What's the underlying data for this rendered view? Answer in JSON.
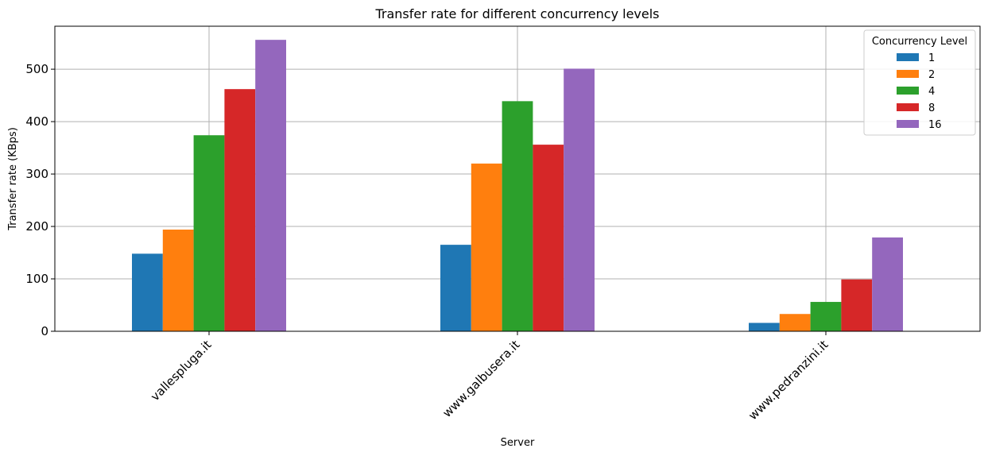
{
  "chart_data": {
    "type": "bar",
    "title": "Transfer rate for different concurrency levels",
    "xlabel": "Server",
    "ylabel": "Transfer rate (KBps)",
    "categories": [
      "vallespluga.it",
      "www.galbusera.it",
      "www.pedranzini.it"
    ],
    "ylim": [
      0,
      582
    ],
    "yticks": [
      0,
      100,
      200,
      300,
      400,
      500
    ],
    "grid": true,
    "legend": {
      "title": "Concurrency Level",
      "placement": "top-right"
    },
    "series": [
      {
        "name": "1",
        "color": "#1f77b4",
        "values": [
          148,
          165,
          16
        ]
      },
      {
        "name": "2",
        "color": "#ff7f0e",
        "values": [
          194,
          320,
          33
        ]
      },
      {
        "name": "4",
        "color": "#2ca02c",
        "values": [
          374,
          439,
          56
        ]
      },
      {
        "name": "8",
        "color": "#d62728",
        "values": [
          462,
          356,
          99
        ]
      },
      {
        "name": "16",
        "color": "#9467bd",
        "values": [
          556,
          501,
          179
        ]
      }
    ]
  }
}
